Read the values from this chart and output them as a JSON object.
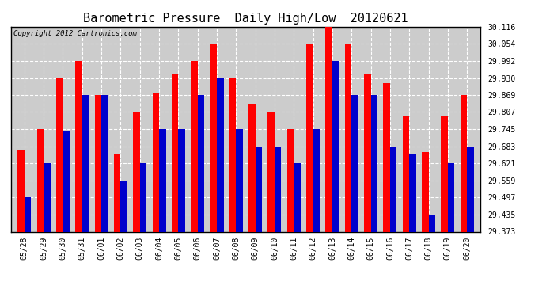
{
  "title": "Barometric Pressure  Daily High/Low  20120621",
  "copyright": "Copyright 2012 Cartronics.com",
  "dates": [
    "05/28",
    "05/29",
    "05/30",
    "05/31",
    "06/01",
    "06/02",
    "06/03",
    "06/04",
    "06/05",
    "06/06",
    "06/07",
    "06/08",
    "06/09",
    "06/10",
    "06/11",
    "06/12",
    "06/13",
    "06/14",
    "06/15",
    "06/16",
    "06/17",
    "06/18",
    "06/19",
    "06/20"
  ],
  "high": [
    29.67,
    29.745,
    29.93,
    29.992,
    29.869,
    29.652,
    29.807,
    29.876,
    29.945,
    29.992,
    30.054,
    29.93,
    29.838,
    29.807,
    29.745,
    30.054,
    30.116,
    30.054,
    29.945,
    29.91,
    29.793,
    29.663,
    29.79,
    29.869
  ],
  "low": [
    29.497,
    29.621,
    29.74,
    29.869,
    29.869,
    29.559,
    29.621,
    29.745,
    29.745,
    29.869,
    29.93,
    29.745,
    29.683,
    29.683,
    29.621,
    29.745,
    29.992,
    29.869,
    29.869,
    29.683,
    29.652,
    29.435,
    29.621,
    29.683
  ],
  "ylim_min": 29.373,
  "ylim_max": 30.116,
  "yticks": [
    29.373,
    29.435,
    29.497,
    29.559,
    29.621,
    29.683,
    29.745,
    29.807,
    29.869,
    29.93,
    29.992,
    30.054,
    30.116
  ],
  "high_color": "#ff0000",
  "low_color": "#0000cc",
  "bg_color": "#ffffff",
  "plot_bg_color": "#cccccc",
  "grid_color": "#ffffff",
  "title_fontsize": 11,
  "tick_fontsize": 7,
  "copyright_fontsize": 6.5
}
